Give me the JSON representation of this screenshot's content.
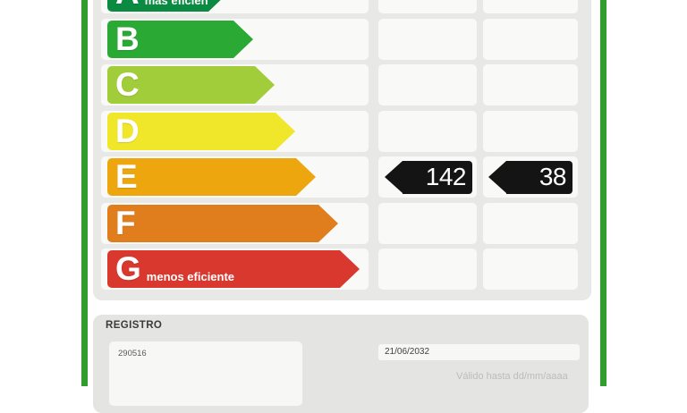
{
  "accent": {
    "border_green": "#2f9e2b",
    "badge_black": "#141414",
    "card_gray": "#e8e8e6",
    "cell_white": "#f9f9f8"
  },
  "scale": {
    "selected_grade": "E",
    "rows": [
      {
        "grade": "A",
        "note": "más eficiente",
        "color": "#0a8b41",
        "arrow_width": 135
      },
      {
        "grade": "B",
        "note": "",
        "color": "#2aa935",
        "arrow_width": 163
      },
      {
        "grade": "C",
        "note": "",
        "color": "#a2cd3a",
        "arrow_width": 187
      },
      {
        "grade": "D",
        "note": "",
        "color": "#f0e62a",
        "arrow_width": 210
      },
      {
        "grade": "E",
        "note": "",
        "color": "#eea60f",
        "arrow_width": 233
      },
      {
        "grade": "F",
        "note": "",
        "color": "#e07e1d",
        "arrow_width": 258
      },
      {
        "grade": "G",
        "note": "menos eficiente",
        "color": "#d8382e",
        "arrow_width": 282
      }
    ]
  },
  "ratings": {
    "consumption_value": "142",
    "emissions_value": "38"
  },
  "registro": {
    "title": "REGISTRO",
    "registration_number": "290516",
    "valid_until_date": "21/06/2032",
    "valid_until_hint": "Válido hasta dd/mm/aaaa"
  }
}
